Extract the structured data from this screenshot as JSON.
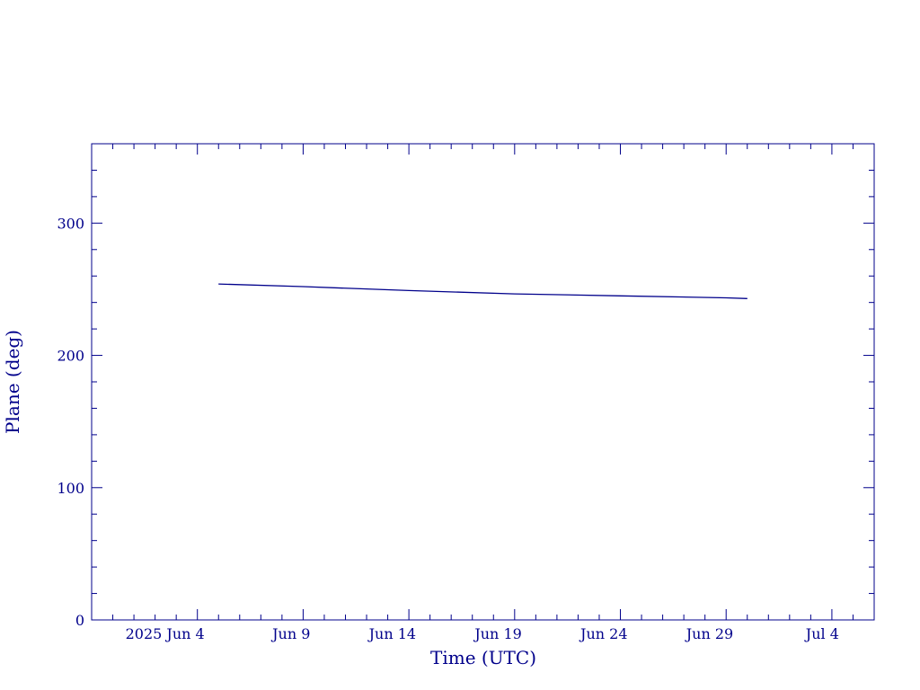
{
  "colors": {
    "ink": "#00008b",
    "background": "#ffffff"
  },
  "chart_data": {
    "type": "line",
    "xlabel": "Time (UTC)",
    "ylabel": "Plane (deg)",
    "ylim": [
      0,
      360
    ],
    "xlim_dates": [
      "2025-05-30",
      "2025-07-06"
    ],
    "grid": false,
    "y_ticks": [
      0,
      100,
      200,
      300
    ],
    "y_tick_labels": [
      "0",
      "100",
      "200",
      "300"
    ],
    "x_ticks": [
      {
        "date": "2025-06-04",
        "label": "2025 Jun  4"
      },
      {
        "date": "2025-06-09",
        "label": "Jun  9"
      },
      {
        "date": "2025-06-14",
        "label": "Jun 14"
      },
      {
        "date": "2025-06-19",
        "label": "Jun 19"
      },
      {
        "date": "2025-06-24",
        "label": "Jun 24"
      },
      {
        "date": "2025-06-29",
        "label": "Jun 29"
      },
      {
        "date": "2025-07-04",
        "label": "Jul  4"
      }
    ],
    "series": [
      {
        "x": [
          "2025-06-05",
          "2025-06-09",
          "2025-06-14",
          "2025-06-19",
          "2025-06-24",
          "2025-06-29",
          "2025-06-30"
        ],
        "y": [
          254,
          252,
          249,
          246.5,
          245,
          243.5,
          243
        ]
      }
    ]
  }
}
